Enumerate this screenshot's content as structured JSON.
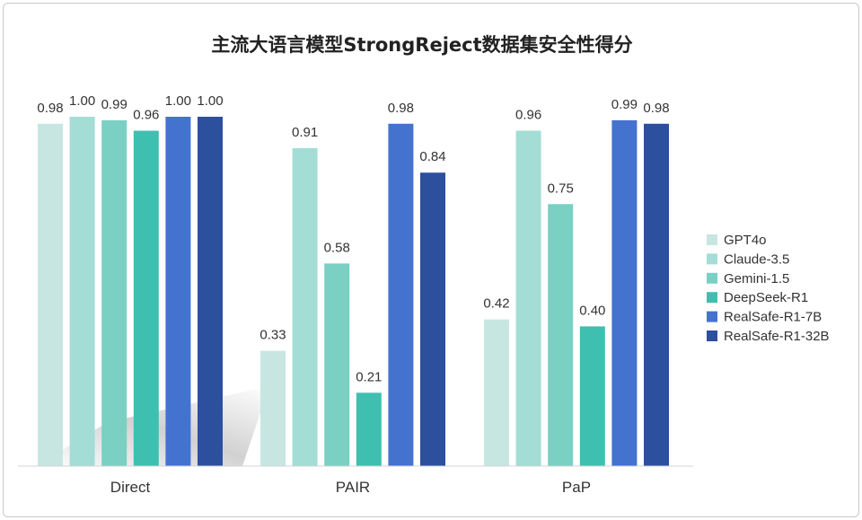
{
  "chart_data": {
    "type": "bar",
    "title": "主流大语言模型StrongReject数据集安全性得分",
    "categories": [
      "Direct",
      "PAIR",
      "PaP"
    ],
    "ylim": [
      0,
      1
    ],
    "grid": false,
    "legend_position": "right",
    "series": [
      {
        "name": "GPT4o",
        "color": "#c7e6e1",
        "values": [
          0.98,
          0.33,
          0.42
        ],
        "labels": [
          "0.98",
          "0.33",
          "0.42"
        ]
      },
      {
        "name": "Claude-3.5",
        "color": "#a3ddd5",
        "values": [
          1.0,
          0.91,
          0.96
        ],
        "labels": [
          "1.00",
          "0.91",
          "0.96"
        ]
      },
      {
        "name": "Gemini-1.5",
        "color": "#79d0c3",
        "values": [
          0.99,
          0.58,
          0.75
        ],
        "labels": [
          "0.99",
          "0.58",
          "0.75"
        ]
      },
      {
        "name": "DeepSeek-R1",
        "color": "#3fbfb0",
        "values": [
          0.96,
          0.21,
          0.4
        ],
        "labels": [
          "0.96",
          "0.21",
          "0.40"
        ]
      },
      {
        "name": "RealSafe-R1-7B",
        "color": "#4472cf",
        "values": [
          1.0,
          0.98,
          0.99
        ],
        "labels": [
          "1.00",
          "0.98",
          "0.99"
        ]
      },
      {
        "name": "RealSafe-R1-32B",
        "color": "#2c4f9e",
        "values": [
          1.0,
          0.84,
          0.98
        ],
        "labels": [
          "1.00",
          "0.84",
          "0.98"
        ]
      }
    ]
  }
}
